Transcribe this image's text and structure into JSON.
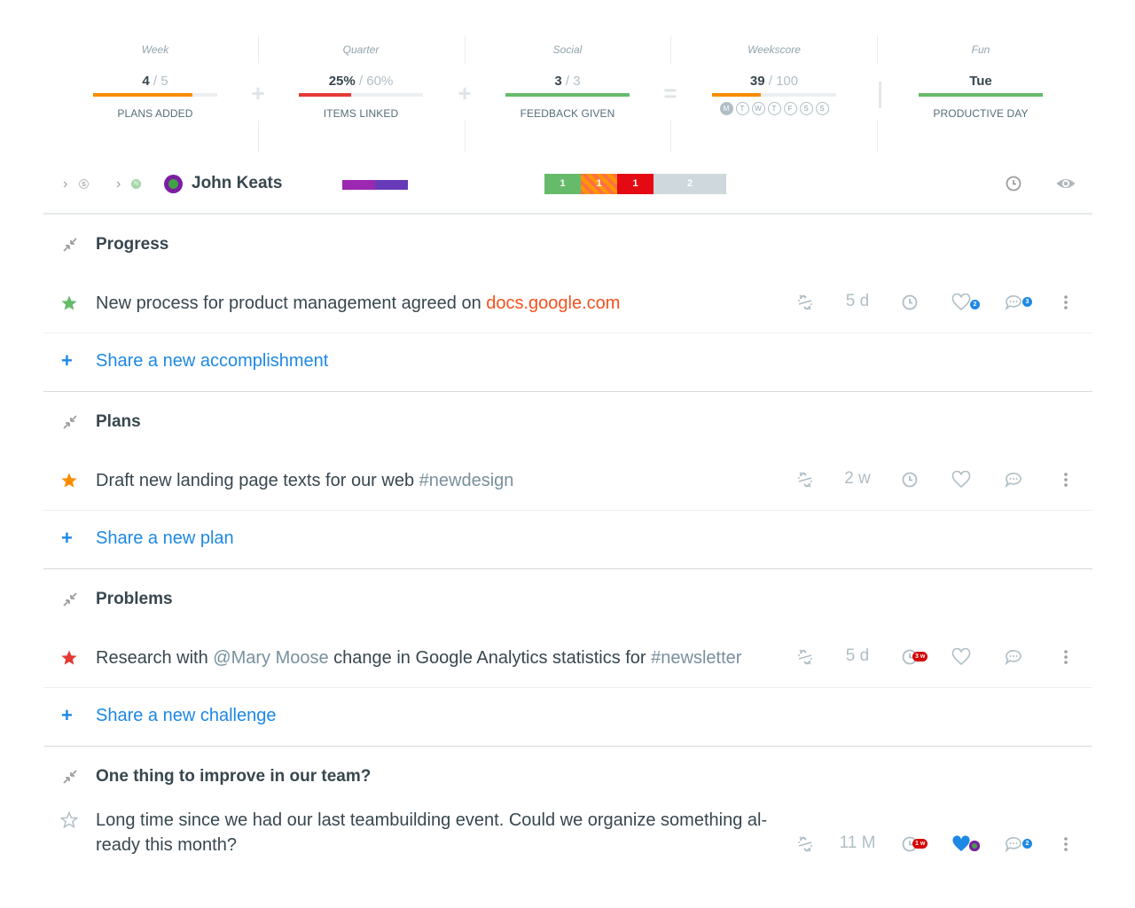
{
  "stats": [
    {
      "category": "Week",
      "value": "4",
      "of": "/ 5",
      "caption": "PLANS ADDED",
      "progress": 0.8,
      "bar_color": "#fb8c00"
    },
    {
      "category": "Quarter",
      "value": "25%",
      "of": "/ 60%",
      "caption": "ITEMS LINKED",
      "progress": 0.42,
      "bar_color": "#e53935"
    },
    {
      "category": "Social",
      "value": "3",
      "of": "/ 3",
      "caption": "FEEDBACK GIVEN",
      "progress": 1.0,
      "bar_color": "#66bb6a"
    },
    {
      "category": "Weekscore",
      "value": "39",
      "of": "/ 100",
      "caption": "",
      "progress": 0.39,
      "bar_color": "#fb8c00",
      "days": [
        "M",
        "T",
        "W",
        "T",
        "F",
        "S",
        "S"
      ],
      "days_filled": 1
    },
    {
      "category": "Fun",
      "value": "Tue",
      "of": "",
      "caption": "PRODUCTIVE DAY",
      "progress": 1.0,
      "bar_color": "#66bb6a"
    }
  ],
  "operators": [
    "+",
    "+",
    "="
  ],
  "user": {
    "name": "John Keats",
    "mini_badges": [
      "S",
      "N"
    ],
    "counts": [
      "1",
      "1",
      "1",
      "2"
    ],
    "accent_colors": {
      "green": "#66bb6a",
      "orange": "#ff7043",
      "red": "#e50914",
      "grey": "#cfd8dc"
    }
  },
  "sections": [
    {
      "title": "Progress",
      "items": [
        {
          "star": "filled",
          "star_color": "#66bb6a",
          "text_parts": [
            {
              "t": "New process for product management agreed on ",
              "k": "plain"
            },
            {
              "t": "docs.google.com",
              "k": "link"
            }
          ],
          "age": "5 d",
          "clock_badge": "",
          "likes": "2",
          "comments": "3",
          "liked": false
        }
      ],
      "add_label": "Share a new accomplishment"
    },
    {
      "title": "Plans",
      "items": [
        {
          "star": "filled",
          "star_color": "#fb8c00",
          "text_parts": [
            {
              "t": "Draft new landing page texts for our web ",
              "k": "plain"
            },
            {
              "t": "#newdesign",
              "k": "tag"
            }
          ],
          "age": "2 w",
          "clock_badge": "",
          "likes": "",
          "comments": "",
          "liked": false
        }
      ],
      "add_label": "Share a new plan"
    },
    {
      "title": "Problems",
      "items": [
        {
          "star": "filled",
          "star_color": "#e53935",
          "text_parts": [
            {
              "t": "Research with ",
              "k": "plain"
            },
            {
              "t": "@Mary Moose",
              "k": "tag"
            },
            {
              "t": " change in Google Analytics statistics for ",
              "k": "plain"
            },
            {
              "t": "#newsletter",
              "k": "tag"
            }
          ],
          "age": "5 d",
          "clock_badge": "3 w",
          "likes": "",
          "comments": "",
          "liked": false
        }
      ],
      "add_label": "Share a new challenge"
    },
    {
      "title": "One thing to improve in our team?",
      "items": [
        {
          "star": "outline",
          "star_color": "#b0bec5",
          "text_parts": [
            {
              "t": "Long time since we had our last teambuilding event. Could we organize something al- ready this month?",
              "k": "plain"
            }
          ],
          "age": "11 M",
          "clock_badge": "1 w",
          "likes": "",
          "comments": "2",
          "liked": true
        }
      ],
      "add_label": ""
    }
  ]
}
